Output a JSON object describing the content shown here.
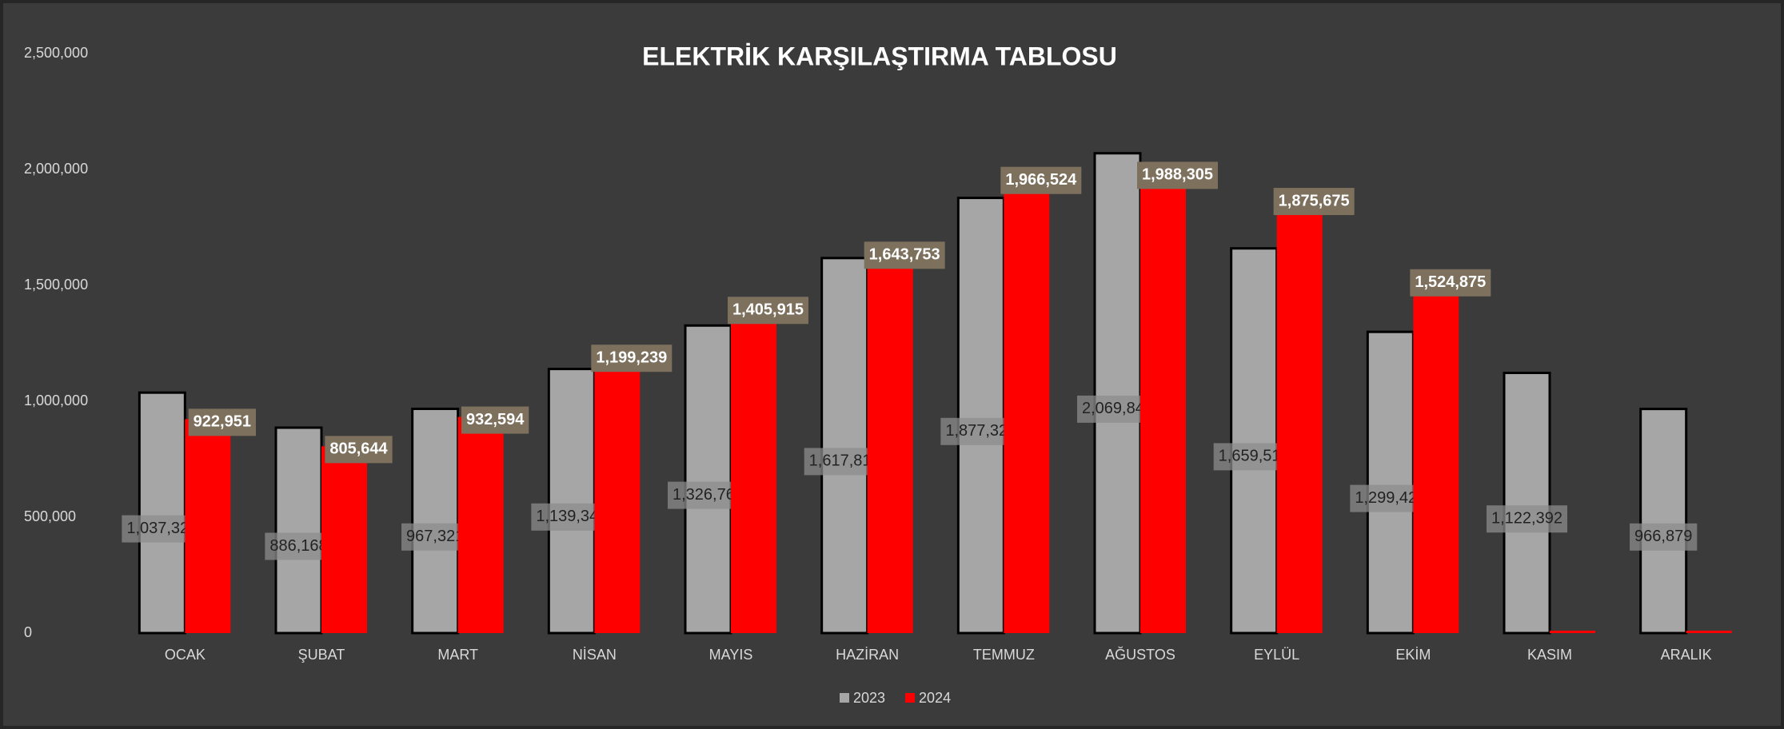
{
  "chart_data": {
    "type": "bar",
    "title": "ELEKTRİK KARŞILAŞTIRMA TABLOSU",
    "categories": [
      "OCAK",
      "ŞUBAT",
      "MART",
      "NİSAN",
      "MAYIS",
      "HAZİRAN",
      "TEMMUZ",
      "AĞUSTOS",
      "EYLÜL",
      "EKİM",
      "KASIM",
      "ARALIK"
    ],
    "series": [
      {
        "name": "2023",
        "color": "#a6a6a6",
        "values": [
          1037328,
          886168,
          967321,
          1139349,
          1326768,
          1617812,
          1877329,
          2069848,
          1659518,
          1299422,
          1122392,
          966879
        ],
        "value_labels": [
          "1,037,328",
          "886,168",
          "967,321",
          "1,139,349",
          "1,326,768",
          "1,617,812",
          "1,877,329",
          "2,069,848",
          "1,659,518",
          "1,299,422",
          "1,122,392",
          "966,879"
        ]
      },
      {
        "name": "2024",
        "color": "#ff0000",
        "values": [
          922951,
          805644,
          932594,
          1199239,
          1405915,
          1643753,
          1966524,
          1988305,
          1875675,
          1524875,
          0,
          0
        ],
        "value_labels": [
          "922,951",
          "805,644",
          "932,594",
          "1,199,239",
          "1,405,915",
          "1,643,753",
          "1,966,524",
          "1,988,305",
          "1,875,675",
          "1,524,875",
          null,
          null
        ]
      }
    ],
    "ylim": [
      0,
      2500000
    ],
    "yticks": [
      0,
      {
        "value": 500000,
        "label": "500,000"
      },
      {
        "value": 1000000,
        "label": "1,000,000"
      },
      {
        "value": 1500000,
        "label": "1,500,000"
      },
      {
        "value": 2000000,
        "label": "2,000,000"
      },
      {
        "value": 2500000,
        "label": "2,500,000"
      }
    ],
    "grid": false,
    "legend": "bottom"
  }
}
